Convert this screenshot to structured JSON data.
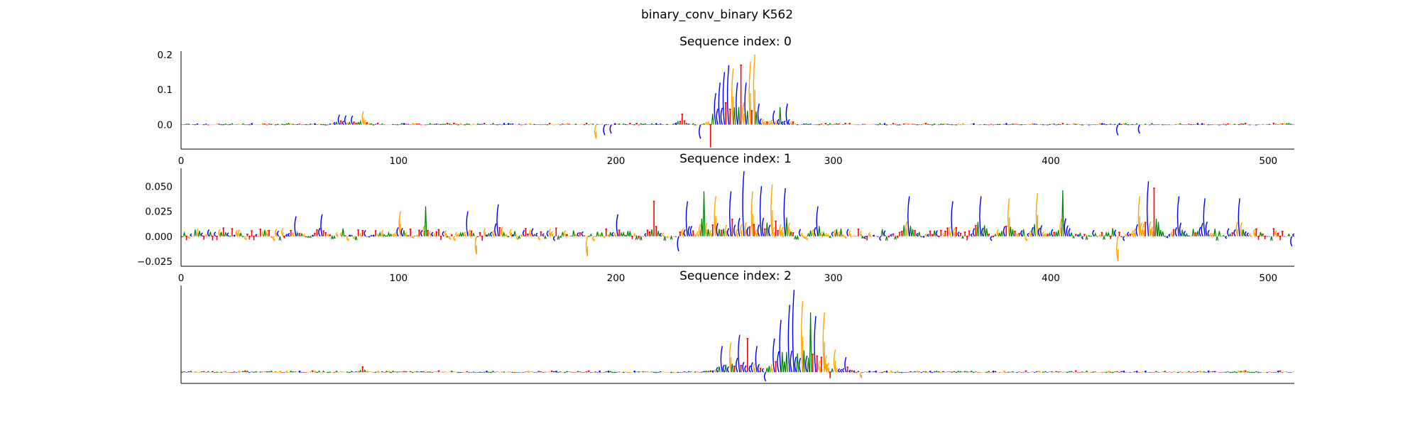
{
  "figure": {
    "suptitle": "binary_conv_binary K562"
  },
  "colors": {
    "A": "#008000",
    "C": "#0000ff",
    "G": "#ffa500",
    "T": "#ff0000"
  },
  "chart_data": [
    {
      "type": "sequence-logo",
      "title": "Sequence index: 0",
      "xlim": [
        0,
        512
      ],
      "ylim": [
        -0.07,
        0.21
      ],
      "xticks": [
        0,
        100,
        200,
        300,
        400,
        500
      ],
      "yticks": [
        0.0,
        0.1,
        0.2
      ],
      "ytick_labels": [
        "0.0",
        "0.1",
        "0.2"
      ],
      "show_xticks": true,
      "peaks": [
        {
          "pos": 72,
          "h": 0.028,
          "base": "C"
        },
        {
          "pos": 75,
          "h": 0.026,
          "base": "C"
        },
        {
          "pos": 78,
          "h": 0.025,
          "base": "C"
        },
        {
          "pos": 83,
          "h": 0.038,
          "base": "G"
        },
        {
          "pos": 190,
          "h": -0.04,
          "base": "G"
        },
        {
          "pos": 194,
          "h": -0.03,
          "base": "C"
        },
        {
          "pos": 197,
          "h": -0.025,
          "base": "C"
        },
        {
          "pos": 230,
          "h": 0.03,
          "base": "T"
        },
        {
          "pos": 238,
          "h": -0.04,
          "base": "C"
        },
        {
          "pos": 243,
          "h": -0.065,
          "base": "T"
        },
        {
          "pos": 245,
          "h": 0.09,
          "base": "C"
        },
        {
          "pos": 247,
          "h": 0.12,
          "base": "C"
        },
        {
          "pos": 249,
          "h": 0.15,
          "base": "C"
        },
        {
          "pos": 251,
          "h": 0.17,
          "base": "C"
        },
        {
          "pos": 253,
          "h": 0.16,
          "base": "G"
        },
        {
          "pos": 255,
          "h": 0.12,
          "base": "C"
        },
        {
          "pos": 257,
          "h": 0.17,
          "base": "T"
        },
        {
          "pos": 259,
          "h": 0.12,
          "base": "C"
        },
        {
          "pos": 261,
          "h": 0.18,
          "base": "G"
        },
        {
          "pos": 263,
          "h": 0.2,
          "base": "G"
        },
        {
          "pos": 265,
          "h": 0.06,
          "base": "C"
        },
        {
          "pos": 272,
          "h": 0.04,
          "base": "C"
        },
        {
          "pos": 275,
          "h": 0.05,
          "base": "A"
        },
        {
          "pos": 278,
          "h": 0.06,
          "base": "C"
        },
        {
          "pos": 430,
          "h": -0.03,
          "base": "C"
        },
        {
          "pos": 440,
          "h": -0.025,
          "base": "C"
        }
      ]
    },
    {
      "type": "sequence-logo",
      "title": "Sequence index: 1",
      "xlim": [
        0,
        512
      ],
      "ylim": [
        -0.03,
        0.068
      ],
      "xticks": [
        0,
        100,
        200,
        300,
        400,
        500
      ],
      "yticks": [
        -0.025,
        0.0,
        0.025,
        0.05
      ],
      "ytick_labels": [
        "−0.025",
        "0.000",
        "0.025",
        "0.050"
      ],
      "show_xticks": true,
      "peaks": [
        {
          "pos": 52,
          "h": 0.02,
          "base": "C"
        },
        {
          "pos": 64,
          "h": 0.022,
          "base": "C"
        },
        {
          "pos": 100,
          "h": 0.025,
          "base": "G"
        },
        {
          "pos": 112,
          "h": 0.03,
          "base": "A"
        },
        {
          "pos": 131,
          "h": 0.025,
          "base": "C"
        },
        {
          "pos": 135,
          "h": -0.018,
          "base": "G"
        },
        {
          "pos": 145,
          "h": 0.032,
          "base": "C"
        },
        {
          "pos": 186,
          "h": -0.02,
          "base": "G"
        },
        {
          "pos": 200,
          "h": 0.022,
          "base": "C"
        },
        {
          "pos": 217,
          "h": 0.035,
          "base": "T"
        },
        {
          "pos": 228,
          "h": -0.015,
          "base": "C"
        },
        {
          "pos": 232,
          "h": 0.035,
          "base": "C"
        },
        {
          "pos": 240,
          "h": 0.045,
          "base": "A"
        },
        {
          "pos": 245,
          "h": 0.04,
          "base": "G"
        },
        {
          "pos": 252,
          "h": 0.045,
          "base": "C"
        },
        {
          "pos": 258,
          "h": 0.065,
          "base": "C"
        },
        {
          "pos": 262,
          "h": 0.045,
          "base": "G"
        },
        {
          "pos": 266,
          "h": 0.05,
          "base": "C"
        },
        {
          "pos": 271,
          "h": 0.052,
          "base": "G"
        },
        {
          "pos": 277,
          "h": 0.048,
          "base": "C"
        },
        {
          "pos": 292,
          "h": 0.03,
          "base": "C"
        },
        {
          "pos": 334,
          "h": 0.04,
          "base": "C"
        },
        {
          "pos": 354,
          "h": 0.035,
          "base": "C"
        },
        {
          "pos": 367,
          "h": 0.04,
          "base": "C"
        },
        {
          "pos": 380,
          "h": 0.038,
          "base": "G"
        },
        {
          "pos": 393,
          "h": 0.043,
          "base": "G"
        },
        {
          "pos": 405,
          "h": 0.046,
          "base": "A"
        },
        {
          "pos": 430,
          "h": -0.025,
          "base": "G"
        },
        {
          "pos": 440,
          "h": 0.04,
          "base": "G"
        },
        {
          "pos": 444,
          "h": 0.055,
          "base": "C"
        },
        {
          "pos": 447,
          "h": 0.048,
          "base": "T"
        },
        {
          "pos": 458,
          "h": 0.04,
          "base": "C"
        },
        {
          "pos": 470,
          "h": 0.038,
          "base": "C"
        },
        {
          "pos": 486,
          "h": 0.038,
          "base": "C"
        },
        {
          "pos": 510,
          "h": -0.01,
          "base": "C"
        }
      ]
    },
    {
      "type": "sequence-logo",
      "title": "Sequence index: 2",
      "xlim": [
        0,
        512
      ],
      "ylim": [
        -0.15,
        1.16
      ],
      "xticks": [],
      "yticks": [],
      "ytick_labels": [],
      "show_xticks": false,
      "peaks": [
        {
          "pos": 83,
          "h": 0.07,
          "base": "T"
        },
        {
          "pos": 260,
          "h": 0.45,
          "base": "T"
        },
        {
          "pos": 248,
          "h": 0.35,
          "base": "C"
        },
        {
          "pos": 252,
          "h": 0.4,
          "base": "G"
        },
        {
          "pos": 256,
          "h": 0.5,
          "base": "C"
        },
        {
          "pos": 264,
          "h": 0.35,
          "base": "C"
        },
        {
          "pos": 268,
          "h": -0.12,
          "base": "C"
        },
        {
          "pos": 272,
          "h": 0.45,
          "base": "C"
        },
        {
          "pos": 275,
          "h": 0.7,
          "base": "C"
        },
        {
          "pos": 279,
          "h": 0.9,
          "base": "C"
        },
        {
          "pos": 281,
          "h": 1.1,
          "base": "C"
        },
        {
          "pos": 285,
          "h": 0.95,
          "base": "G"
        },
        {
          "pos": 289,
          "h": 0.8,
          "base": "A"
        },
        {
          "pos": 291,
          "h": 0.75,
          "base": "C"
        },
        {
          "pos": 295,
          "h": 0.8,
          "base": "G"
        },
        {
          "pos": 298,
          "h": -0.08,
          "base": "T"
        },
        {
          "pos": 300,
          "h": 0.3,
          "base": "G"
        },
        {
          "pos": 305,
          "h": 0.2,
          "base": "C"
        },
        {
          "pos": 312,
          "h": -0.07,
          "base": "G"
        }
      ]
    }
  ]
}
